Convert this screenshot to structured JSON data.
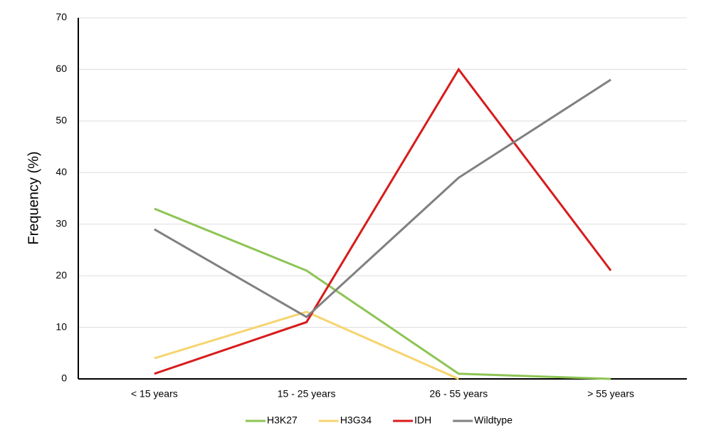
{
  "chart_data": {
    "type": "line",
    "y_label": "Frequency (%)",
    "categories": [
      "< 15 years",
      "15 - 25 years",
      "26 - 55 years",
      "> 55 years"
    ],
    "series": [
      {
        "name": "H3K27",
        "color": "#8dc454",
        "values": [
          33,
          21,
          1,
          0
        ]
      },
      {
        "name": "H3G34",
        "color": "#f6d46f",
        "values": [
          4,
          13,
          0,
          null
        ]
      },
      {
        "name": "IDH",
        "color": "#d81b1b",
        "values": [
          1,
          11,
          60,
          21
        ]
      },
      {
        "name": "Wildtype",
        "color": "#808080",
        "values": [
          29,
          12,
          39,
          58
        ]
      }
    ],
    "ylim": [
      0,
      70
    ],
    "yticks": [
      0,
      10,
      20,
      30,
      40,
      50,
      60,
      70
    ],
    "grid": true,
    "legend": "bottom"
  }
}
